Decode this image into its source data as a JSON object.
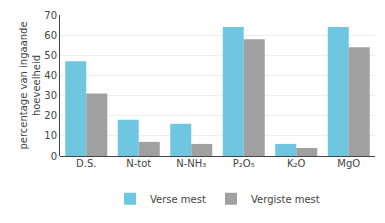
{
  "chart_data": {
    "type": "bar",
    "categories": [
      "D.S.",
      "N-tot",
      "N-NH₃",
      "P₂O₅",
      "K₂O",
      "MgO"
    ],
    "series": [
      {
        "name": "Verse mest",
        "color": "#6ec6e0",
        "values": [
          47,
          18,
          16,
          64,
          6,
          64
        ]
      },
      {
        "name": "Vergiste mest",
        "color": "#a0a0a0",
        "values": [
          31,
          7,
          6,
          58,
          4,
          54
        ]
      }
    ],
    "ylabel": "percentage van ingaande\nhoeveelheid",
    "ylim": [
      0,
      70
    ],
    "yticks": [
      0,
      10,
      20,
      30,
      40,
      50,
      60,
      70
    ],
    "grid": true,
    "legend": "bottom"
  }
}
